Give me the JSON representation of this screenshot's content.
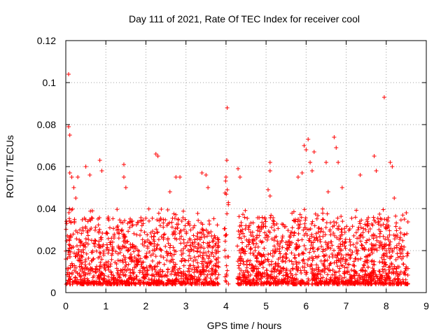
{
  "chart_data": {
    "type": "scatter",
    "title": "Day 111 of 2021, Rate Of TEC Index for receiver cool",
    "xlabel": "GPS time / hours",
    "ylabel": "ROTI / TECUs",
    "xlim": [
      0,
      9
    ],
    "ylim": [
      0,
      0.12
    ],
    "xticks": [
      0,
      1,
      2,
      3,
      4,
      5,
      6,
      7,
      8,
      9
    ],
    "yticks": [
      0,
      0.02,
      0.04,
      0.06,
      0.08,
      0.1,
      0.12
    ],
    "xtick_labels": [
      "0",
      "1",
      "2",
      "3",
      "4",
      "5",
      "6",
      "7",
      "8",
      "9"
    ],
    "ytick_labels": [
      "0",
      "0.02",
      "0.04",
      "0.06",
      "0.08",
      "0.1",
      "0.12"
    ],
    "grid": true,
    "marker": "+",
    "color": "#ff0000",
    "series": [
      {
        "name": "ROTI",
        "note": "dense cloud of points 0.003-0.035 from 0 to 3.8 h and 4.3 to 8.5 h; gap near 3.9-4.2 h",
        "points": [
          [
            0.07,
            0.104
          ],
          [
            0.07,
            0.079
          ],
          [
            0.1,
            0.075
          ],
          [
            0.1,
            0.057
          ],
          [
            0.15,
            0.055
          ],
          [
            0.2,
            0.05
          ],
          [
            0.25,
            0.045
          ],
          [
            0.3,
            0.055
          ],
          [
            0.5,
            0.06
          ],
          [
            0.6,
            0.056
          ],
          [
            0.85,
            0.063
          ],
          [
            0.9,
            0.058
          ],
          [
            1.45,
            0.061
          ],
          [
            1.45,
            0.055
          ],
          [
            1.5,
            0.05
          ],
          [
            2.25,
            0.066
          ],
          [
            2.3,
            0.065
          ],
          [
            2.6,
            0.048
          ],
          [
            2.75,
            0.055
          ],
          [
            2.85,
            0.055
          ],
          [
            3.4,
            0.057
          ],
          [
            3.5,
            0.056
          ],
          [
            3.55,
            0.05
          ],
          [
            4.03,
            0.088
          ],
          [
            4.02,
            0.063
          ],
          [
            4.0,
            0.055
          ],
          [
            4.3,
            0.059
          ],
          [
            4.35,
            0.055
          ],
          [
            5.1,
            0.062
          ],
          [
            5.1,
            0.058
          ],
          [
            5.05,
            0.049
          ],
          [
            5.1,
            0.046
          ],
          [
            5.8,
            0.055
          ],
          [
            5.9,
            0.057
          ],
          [
            5.95,
            0.07
          ],
          [
            6.0,
            0.068
          ],
          [
            6.05,
            0.073
          ],
          [
            6.1,
            0.062
          ],
          [
            6.15,
            0.058
          ],
          [
            6.2,
            0.067
          ],
          [
            6.5,
            0.062
          ],
          [
            6.55,
            0.048
          ],
          [
            6.7,
            0.074
          ],
          [
            6.75,
            0.069
          ],
          [
            6.8,
            0.062
          ],
          [
            6.9,
            0.05
          ],
          [
            7.35,
            0.056
          ],
          [
            7.7,
            0.065
          ],
          [
            7.75,
            0.058
          ],
          [
            7.95,
            0.093
          ],
          [
            8.1,
            0.062
          ],
          [
            8.15,
            0.06
          ],
          [
            8.2,
            0.045
          ],
          [
            8.5,
            0.038
          ]
        ]
      }
    ]
  }
}
